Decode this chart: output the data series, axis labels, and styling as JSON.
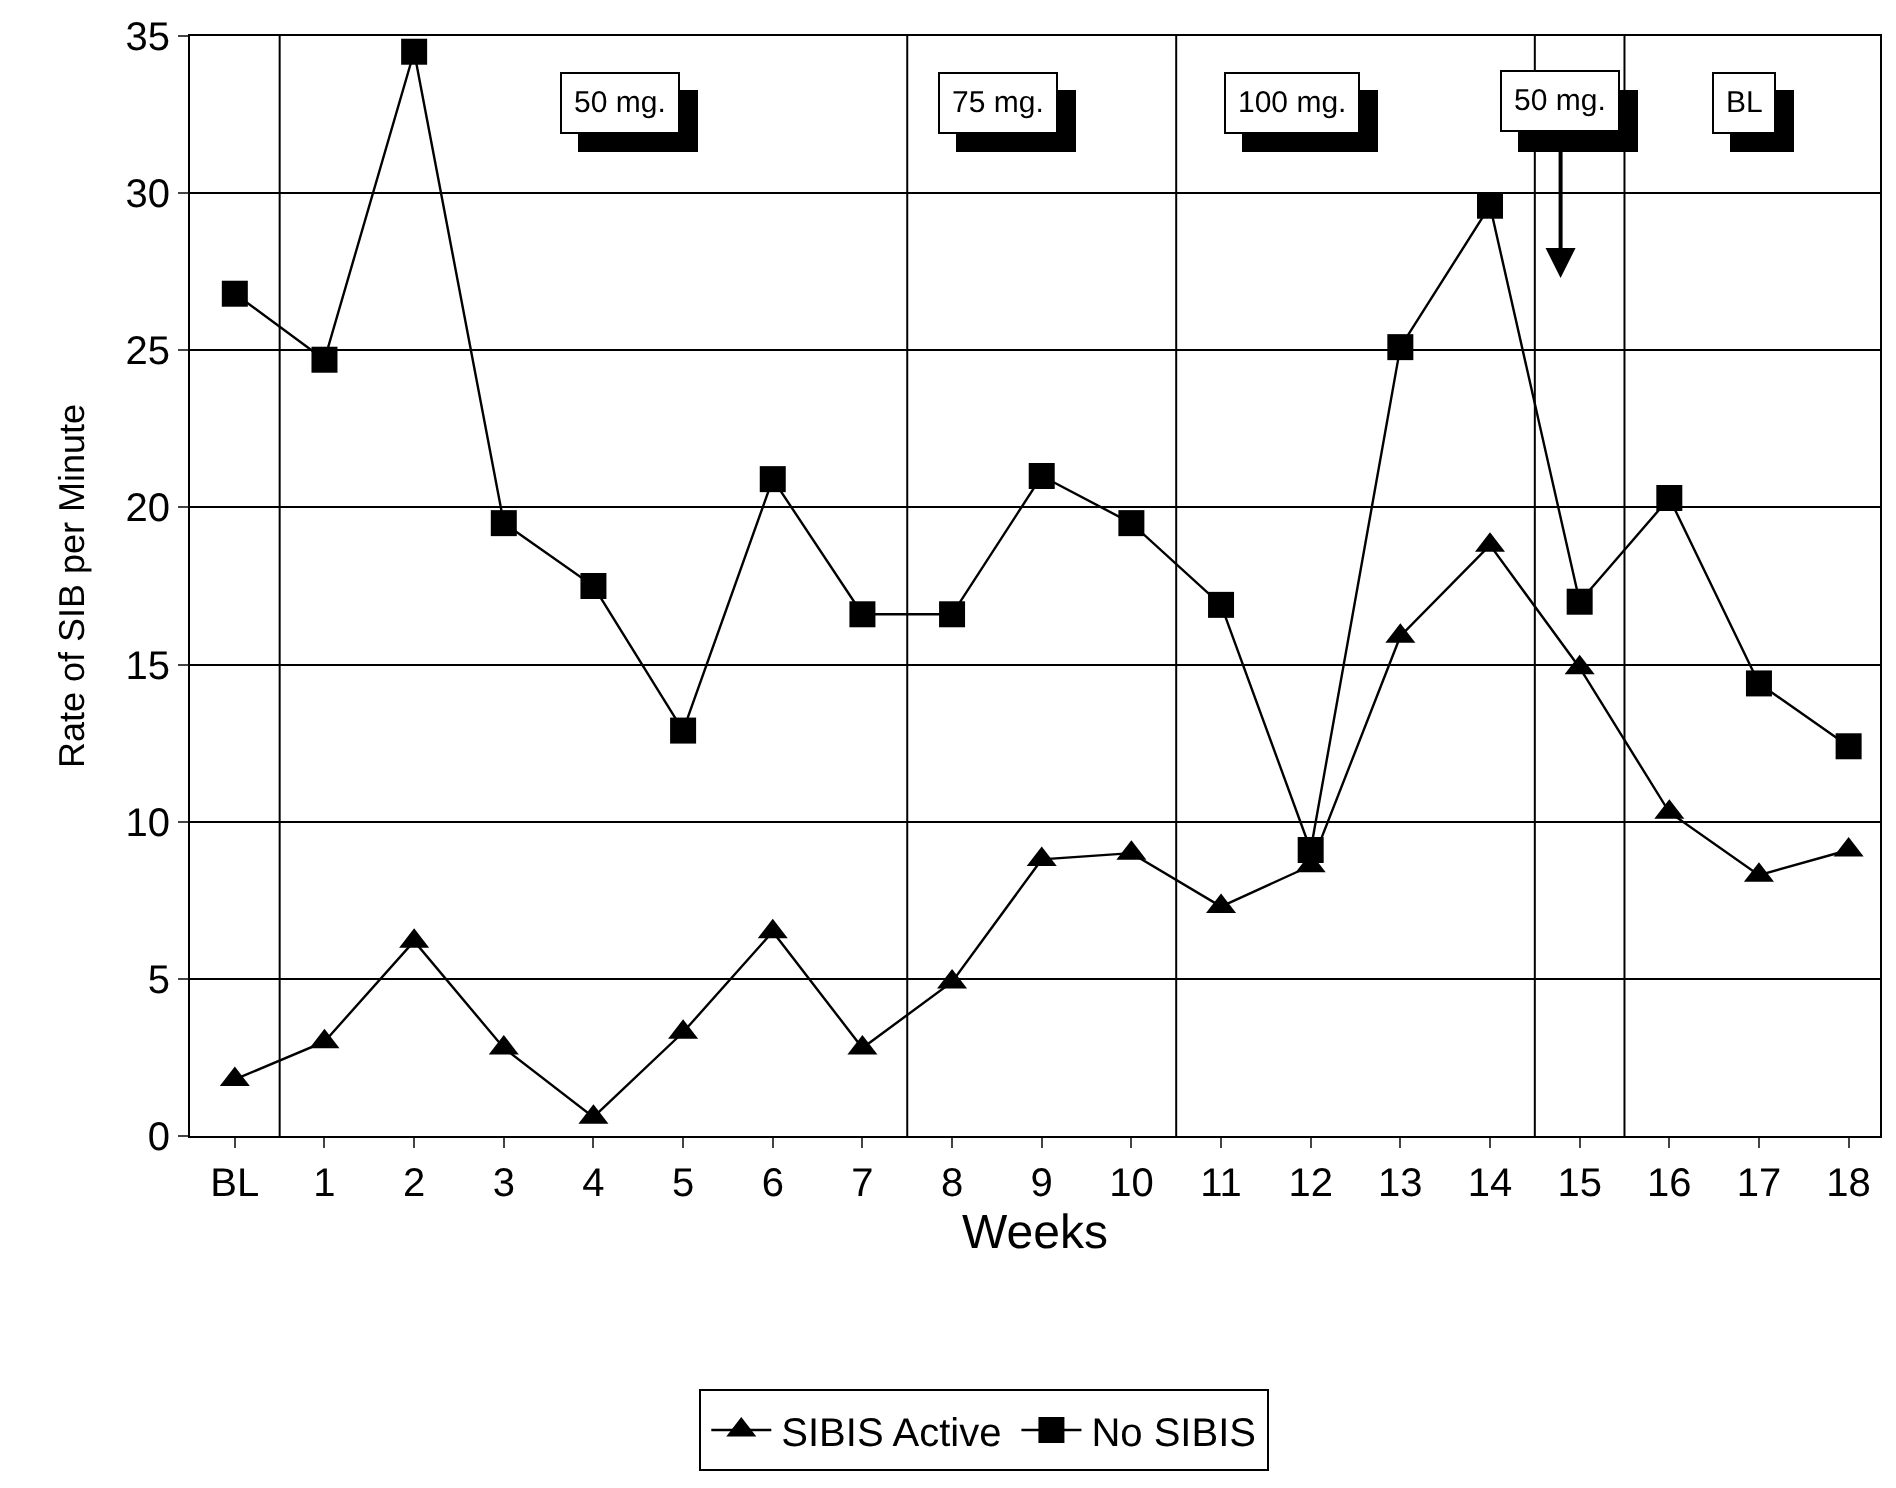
{
  "chart_data": {
    "type": "line",
    "xlabel": "Weeks",
    "ylabel": "Rate of SIB per Minute",
    "x": [
      0,
      1,
      2,
      3,
      4,
      5,
      6,
      7,
      8,
      9,
      10,
      11,
      12,
      13,
      14,
      15,
      16,
      17,
      18
    ],
    "xlim": [
      -0.5,
      18.35
    ],
    "xticks": [
      {
        "value": 0,
        "label": "BL"
      },
      1,
      2,
      3,
      4,
      5,
      6,
      7,
      8,
      9,
      10,
      11,
      12,
      13,
      14,
      15,
      16,
      17,
      18
    ],
    "ylim": [
      0,
      35
    ],
    "yticks": [
      0,
      5,
      10,
      15,
      20,
      25,
      30,
      35
    ],
    "grid": "y",
    "legend": "bottom",
    "series": [
      {
        "name": "SIBIS Active",
        "color": "#000000",
        "marker": "triangle",
        "values": [
          1.8,
          3.0,
          6.2,
          2.8,
          0.6,
          3.3,
          6.5,
          2.8,
          4.9,
          8.8,
          9.0,
          7.3,
          8.6,
          15.9,
          18.8,
          14.9,
          10.3,
          8.3,
          9.1
        ]
      },
      {
        "name": "No SIBIS",
        "color": "#000000",
        "marker": "square",
        "values": [
          26.8,
          24.7,
          34.5,
          19.5,
          17.5,
          12.9,
          20.9,
          16.6,
          16.6,
          21.0,
          19.5,
          16.9,
          9.1,
          25.1,
          29.6,
          17.0,
          20.3,
          14.4,
          12.4
        ]
      }
    ],
    "ref_lines": [
      {
        "axis": "x",
        "value": 0.5,
        "color": "#000000"
      },
      {
        "axis": "x",
        "value": 7.5,
        "color": "#000000"
      },
      {
        "axis": "x",
        "value": 10.5,
        "color": "#000000"
      },
      {
        "axis": "x",
        "value": 14.5,
        "color": "#000000"
      },
      {
        "axis": "x",
        "value": 15.5,
        "color": "#000000"
      }
    ],
    "annotations": [
      "50 mg.",
      "75 mg.",
      "100 mg.",
      "50 mg.",
      "BL"
    ]
  }
}
